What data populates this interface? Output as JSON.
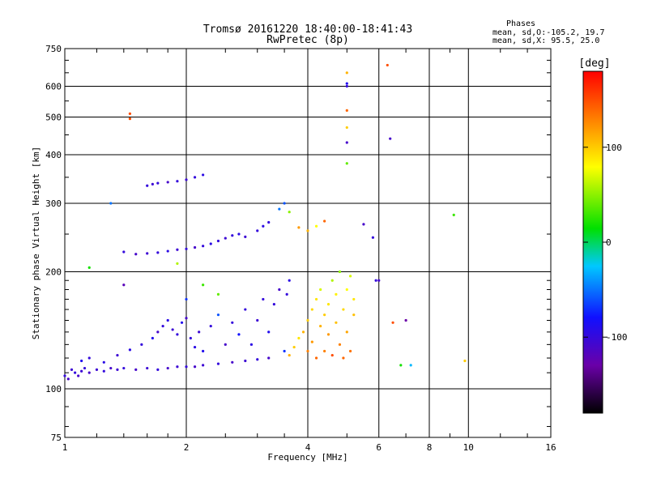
{
  "chart_data": {
    "type": "scatter",
    "title": "Tromsø 20161220 18:40:00-18:41:43",
    "subtitle": "RwPretec (8p)",
    "xlabel": "Frequency [MHz]",
    "ylabel": "Stationary phase Virtual Height [km]",
    "x_scale": "log",
    "y_scale": "log",
    "xlim": [
      1,
      16
    ],
    "ylim": [
      75,
      750
    ],
    "grid": true,
    "xticks": [
      1,
      2,
      4,
      6,
      8,
      10,
      16
    ],
    "xtick_labels": [
      "1",
      "2",
      "4",
      "6",
      "8",
      "10",
      "16"
    ],
    "yticks": [
      75,
      100,
      200,
      300,
      400,
      500,
      600,
      750
    ],
    "ytick_labels": [
      "75",
      "100",
      "200",
      "300",
      "400",
      "500",
      "600",
      "750"
    ],
    "colorbar": {
      "label": "[deg]",
      "range": [
        -180,
        180
      ],
      "ticks": [
        100,
        0,
        -100
      ],
      "tick_labels": [
        "100",
        "0",
        "-100"
      ],
      "colors": [
        "#000000",
        "#6a00a8",
        "#1010ff",
        "#00c8ff",
        "#00e000",
        "#ffff00",
        "#ff8000",
        "#ff0000"
      ]
    },
    "stats": {
      "heading": "Phases",
      "line1": "mean, sd,O:-105.2, 19.7",
      "line2": "mean, sd,X:  95.5, 25.0"
    },
    "series": [
      {
        "note_free": true,
        "points": [
          [
            1.0,
            108,
            -100
          ],
          [
            1.02,
            106,
            -110
          ],
          [
            1.04,
            112,
            -105
          ],
          [
            1.06,
            110,
            -100
          ],
          [
            1.08,
            108,
            -110
          ],
          [
            1.1,
            111,
            -105
          ],
          [
            1.12,
            113,
            -100
          ],
          [
            1.15,
            110,
            -110
          ],
          [
            1.2,
            112,
            -105
          ],
          [
            1.25,
            111,
            -100
          ],
          [
            1.3,
            113,
            -110
          ],
          [
            1.35,
            112,
            -105
          ],
          [
            1.4,
            113,
            -100
          ],
          [
            1.5,
            112,
            -110
          ],
          [
            1.6,
            113,
            -105
          ],
          [
            1.7,
            112,
            -100
          ],
          [
            1.8,
            113,
            -110
          ],
          [
            1.9,
            114,
            -105
          ],
          [
            2.0,
            114,
            -100
          ],
          [
            2.1,
            114,
            -110
          ],
          [
            2.2,
            115,
            -105
          ],
          [
            2.4,
            116,
            -100
          ],
          [
            2.6,
            117,
            -110
          ],
          [
            2.8,
            118,
            -105
          ],
          [
            3.0,
            119,
            -100
          ],
          [
            3.2,
            120,
            -110
          ],
          [
            1.1,
            118,
            -90
          ],
          [
            1.15,
            120,
            -100
          ],
          [
            1.25,
            117,
            -95
          ],
          [
            1.35,
            122,
            -105
          ],
          [
            1.45,
            126,
            -95
          ],
          [
            1.55,
            130,
            -100
          ],
          [
            1.65,
            135,
            -90
          ],
          [
            1.7,
            140,
            -110
          ],
          [
            1.75,
            145,
            -100
          ],
          [
            1.8,
            150,
            -95
          ],
          [
            1.85,
            142,
            -105
          ],
          [
            1.9,
            138,
            -100
          ],
          [
            1.95,
            148,
            -90
          ],
          [
            2.0,
            152,
            -110
          ],
          [
            2.05,
            135,
            -100
          ],
          [
            2.1,
            128,
            -95
          ],
          [
            2.15,
            140,
            -105
          ],
          [
            2.2,
            125,
            -90
          ],
          [
            2.3,
            145,
            -100
          ],
          [
            2.4,
            155,
            -60
          ],
          [
            2.5,
            130,
            -110
          ],
          [
            2.6,
            148,
            -100
          ],
          [
            2.7,
            138,
            -80
          ],
          [
            2.8,
            160,
            -100
          ],
          [
            2.9,
            130,
            -95
          ],
          [
            3.0,
            150,
            -105
          ],
          [
            3.1,
            170,
            -100
          ],
          [
            3.2,
            140,
            -90
          ],
          [
            3.3,
            165,
            -100
          ],
          [
            3.4,
            180,
            -110
          ],
          [
            3.5,
            125,
            -70
          ],
          [
            3.55,
            175,
            -100
          ],
          [
            3.6,
            190,
            -95
          ],
          [
            1.4,
            225,
            -100
          ],
          [
            1.5,
            222,
            -110
          ],
          [
            1.6,
            223,
            -105
          ],
          [
            1.7,
            224,
            -100
          ],
          [
            1.8,
            226,
            -95
          ],
          [
            1.9,
            228,
            -105
          ],
          [
            2.0,
            229,
            -100
          ],
          [
            2.1,
            231,
            -110
          ],
          [
            2.2,
            233,
            -100
          ],
          [
            2.3,
            236,
            -95
          ],
          [
            2.4,
            240,
            -100
          ],
          [
            2.5,
            244,
            -105
          ],
          [
            2.6,
            248,
            -100
          ],
          [
            2.7,
            250,
            -95
          ],
          [
            2.8,
            246,
            -105
          ],
          [
            3.0,
            255,
            -100
          ],
          [
            3.1,
            262,
            -95
          ],
          [
            3.2,
            268,
            -100
          ],
          [
            1.6,
            333,
            -100
          ],
          [
            1.65,
            336,
            -105
          ],
          [
            1.7,
            338,
            -100
          ],
          [
            1.8,
            340,
            -110
          ],
          [
            1.9,
            342,
            -100
          ],
          [
            2.0,
            345,
            -105
          ],
          [
            2.1,
            350,
            -100
          ],
          [
            2.2,
            355,
            -95
          ],
          [
            3.4,
            290,
            -50
          ],
          [
            3.5,
            300,
            -60
          ],
          [
            3.6,
            285,
            50
          ],
          [
            3.8,
            260,
            120
          ],
          [
            4.0,
            255,
            110
          ],
          [
            4.2,
            262,
            80
          ],
          [
            4.4,
            270,
            140
          ],
          [
            3.6,
            122,
            110
          ],
          [
            3.7,
            128,
            100
          ],
          [
            3.8,
            135,
            90
          ],
          [
            3.9,
            140,
            110
          ],
          [
            4.0,
            150,
            100
          ],
          [
            4.0,
            125,
            130
          ],
          [
            4.1,
            160,
            95
          ],
          [
            4.1,
            132,
            120
          ],
          [
            4.2,
            170,
            90
          ],
          [
            4.2,
            120,
            140
          ],
          [
            4.3,
            145,
            110
          ],
          [
            4.3,
            180,
            70
          ],
          [
            4.4,
            155,
            100
          ],
          [
            4.4,
            125,
            130
          ],
          [
            4.5,
            165,
            90
          ],
          [
            4.5,
            138,
            120
          ],
          [
            4.6,
            190,
            60
          ],
          [
            4.6,
            122,
            150
          ],
          [
            4.7,
            175,
            85
          ],
          [
            4.7,
            148,
            105
          ],
          [
            4.8,
            200,
            50
          ],
          [
            4.8,
            130,
            130
          ],
          [
            4.9,
            160,
            95
          ],
          [
            4.9,
            120,
            140
          ],
          [
            5.0,
            180,
            80
          ],
          [
            5.0,
            140,
            115
          ],
          [
            5.1,
            195,
            70
          ],
          [
            5.1,
            125,
            135
          ],
          [
            5.2,
            155,
            105
          ],
          [
            5.2,
            170,
            90
          ],
          [
            5.0,
            650,
            110
          ],
          [
            5.0,
            610,
            -90
          ],
          [
            5.0,
            600,
            -100
          ],
          [
            5.0,
            520,
            140
          ],
          [
            5.0,
            470,
            100
          ],
          [
            5.0,
            430,
            -110
          ],
          [
            5.0,
            380,
            40
          ],
          [
            6.3,
            680,
            150
          ],
          [
            6.4,
            440,
            -110
          ],
          [
            1.45,
            510,
            150
          ],
          [
            1.45,
            495,
            150
          ],
          [
            5.5,
            265,
            -110
          ],
          [
            5.8,
            245,
            -100
          ],
          [
            5.9,
            190,
            -100
          ],
          [
            6.0,
            190,
            -110
          ],
          [
            1.15,
            205,
            20
          ],
          [
            1.3,
            300,
            -50
          ],
          [
            1.4,
            185,
            -120
          ],
          [
            6.5,
            148,
            150
          ],
          [
            7.0,
            150,
            -130
          ],
          [
            6.8,
            115,
            20
          ],
          [
            7.2,
            115,
            -30
          ],
          [
            9.2,
            280,
            30
          ],
          [
            9.8,
            118,
            100
          ],
          [
            1.9,
            210,
            60
          ],
          [
            2.4,
            175,
            40
          ],
          [
            2.0,
            170,
            -70
          ],
          [
            2.2,
            185,
            30
          ]
        ]
      }
    ]
  }
}
